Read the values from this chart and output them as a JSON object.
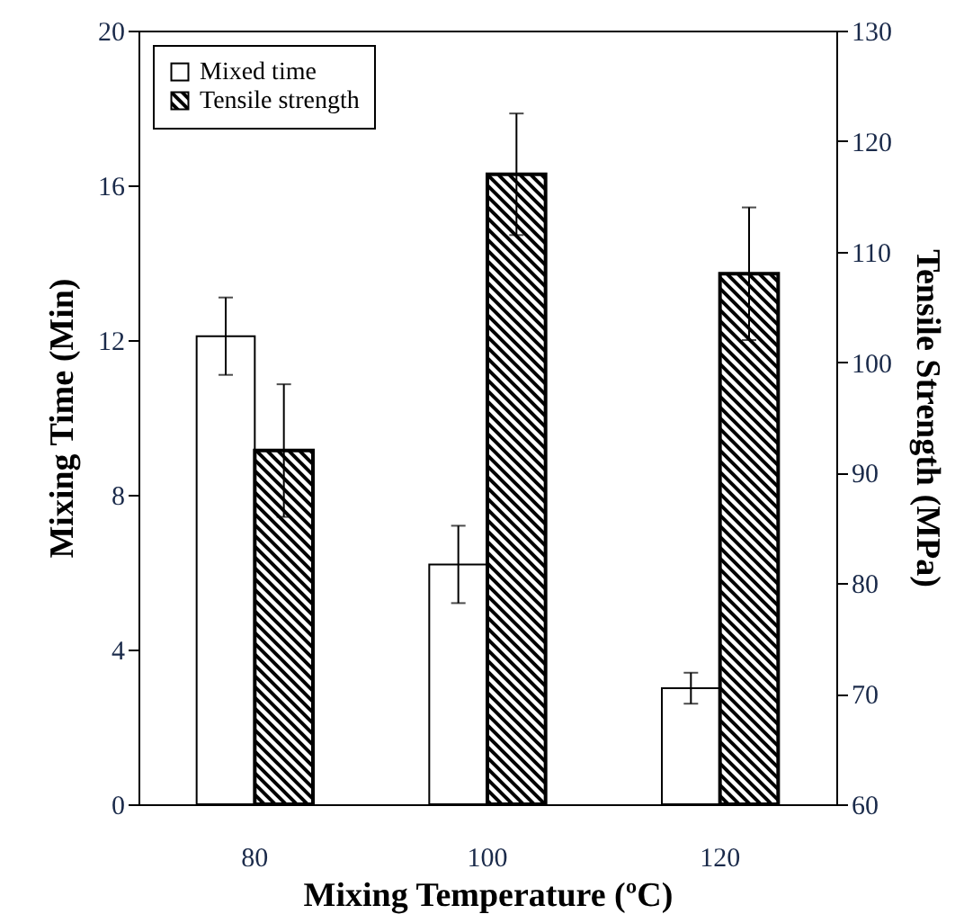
{
  "chart_data": {
    "type": "bar",
    "xlabel": "Mixing Temperature (ºC)",
    "ylabel": "Mixing Time (Min)",
    "y2label": "Tensile Strength (MPa)",
    "categories": [
      "80",
      "100",
      "120"
    ],
    "series": [
      {
        "name": "Mixed time",
        "color": "#ffffff",
        "values": [
          12.1,
          6.2,
          3.0
        ],
        "errors": [
          1.0,
          1.0,
          0.4
        ]
      },
      {
        "name": "Tensile strength",
        "color": "#000000",
        "axis": "y2",
        "values": [
          92,
          117,
          108
        ],
        "errors": [
          6,
          5.5,
          6
        ]
      }
    ],
    "ylim": [
      0,
      20
    ],
    "yticks": [
      0,
      4,
      8,
      12,
      16,
      20
    ],
    "y2lim": [
      60,
      130
    ],
    "y2ticks": [
      60,
      70,
      80,
      90,
      100,
      110,
      120,
      130
    ],
    "legend": "top left",
    "grid": false
  }
}
